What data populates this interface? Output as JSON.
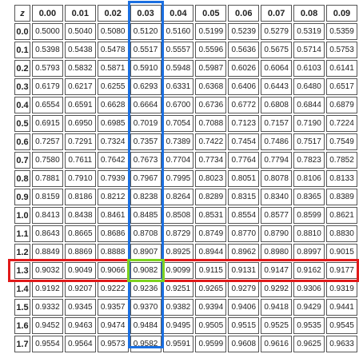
{
  "table": {
    "z_label": "z",
    "columns": [
      "0.00",
      "0.01",
      "0.02",
      "0.03",
      "0.04",
      "0.05",
      "0.06",
      "0.07",
      "0.08",
      "0.09"
    ],
    "rows": [
      {
        "z": "0.0",
        "values": [
          "0.5000",
          "0.5040",
          "0.5080",
          "0.5120",
          "0.5160",
          "0.5199",
          "0.5239",
          "0.5279",
          "0.5319",
          "0.5359"
        ]
      },
      {
        "z": "0.1",
        "values": [
          "0.5398",
          "0.5438",
          "0.5478",
          "0.5517",
          "0.5557",
          "0.5596",
          "0.5636",
          "0.5675",
          "0.5714",
          "0.5753"
        ]
      },
      {
        "z": "0.2",
        "values": [
          "0.5793",
          "0.5832",
          "0.5871",
          "0.5910",
          "0.5948",
          "0.5987",
          "0.6026",
          "0.6064",
          "0.6103",
          "0.6141"
        ]
      },
      {
        "z": "0.3",
        "values": [
          "0.6179",
          "0.6217",
          "0.6255",
          "0.6293",
          "0.6331",
          "0.6368",
          "0.6406",
          "0.6443",
          "0.6480",
          "0.6517"
        ]
      },
      {
        "z": "0.4",
        "values": [
          "0.6554",
          "0.6591",
          "0.6628",
          "0.6664",
          "0.6700",
          "0.6736",
          "0.6772",
          "0.6808",
          "0.6844",
          "0.6879"
        ]
      },
      {
        "z": "0.5",
        "values": [
          "0.6915",
          "0.6950",
          "0.6985",
          "0.7019",
          "0.7054",
          "0.7088",
          "0.7123",
          "0.7157",
          "0.7190",
          "0.7224"
        ]
      },
      {
        "z": "0.6",
        "values": [
          "0.7257",
          "0.7291",
          "0.7324",
          "0.7357",
          "0.7389",
          "0.7422",
          "0.7454",
          "0.7486",
          "0.7517",
          "0.7549"
        ]
      },
      {
        "z": "0.7",
        "values": [
          "0.7580",
          "0.7611",
          "0.7642",
          "0.7673",
          "0.7704",
          "0.7734",
          "0.7764",
          "0.7794",
          "0.7823",
          "0.7852"
        ]
      },
      {
        "z": "0.8",
        "values": [
          "0.7881",
          "0.7910",
          "0.7939",
          "0.7967",
          "0.7995",
          "0.8023",
          "0.8051",
          "0.8078",
          "0.8106",
          "0.8133"
        ]
      },
      {
        "z": "0.9",
        "values": [
          "0.8159",
          "0.8186",
          "0.8212",
          "0.8238",
          "0.8264",
          "0.8289",
          "0.8315",
          "0.8340",
          "0.8365",
          "0.8389"
        ]
      },
      {
        "z": "1.0",
        "values": [
          "0.8413",
          "0.8438",
          "0.8461",
          "0.8485",
          "0.8508",
          "0.8531",
          "0.8554",
          "0.8577",
          "0.8599",
          "0.8621"
        ]
      },
      {
        "z": "1.1",
        "values": [
          "0.8643",
          "0.8665",
          "0.8686",
          "0.8708",
          "0.8729",
          "0.8749",
          "0.8770",
          "0.8790",
          "0.8810",
          "0.8830"
        ]
      },
      {
        "z": "1.2",
        "values": [
          "0.8849",
          "0.8869",
          "0.8888",
          "0.8907",
          "0.8925",
          "0.8944",
          "0.8962",
          "0.8980",
          "0.8997",
          "0.9015"
        ]
      },
      {
        "z": "1.3",
        "values": [
          "0.9032",
          "0.9049",
          "0.9066",
          "0.9082",
          "0.9099",
          "0.9115",
          "0.9131",
          "0.9147",
          "0.9162",
          "0.9177"
        ]
      },
      {
        "z": "1.4",
        "values": [
          "0.9192",
          "0.9207",
          "0.9222",
          "0.9236",
          "0.9251",
          "0.9265",
          "0.9279",
          "0.9292",
          "0.9306",
          "0.9319"
        ]
      },
      {
        "z": "1.5",
        "values": [
          "0.9332",
          "0.9345",
          "0.9357",
          "0.9370",
          "0.9382",
          "0.9394",
          "0.9406",
          "0.9418",
          "0.9429",
          "0.9441"
        ]
      },
      {
        "z": "1.6",
        "values": [
          "0.9452",
          "0.9463",
          "0.9474",
          "0.9484",
          "0.9495",
          "0.9505",
          "0.9515",
          "0.9525",
          "0.9535",
          "0.9545"
        ]
      },
      {
        "z": "1.7",
        "values": [
          "0.9554",
          "0.9564",
          "0.9573",
          "0.9582",
          "0.9591",
          "0.9599",
          "0.9608",
          "0.9616",
          "0.9625",
          "0.9633"
        ]
      }
    ]
  },
  "highlights": {
    "row_z": "1.3",
    "row_color": "#e11a1a",
    "column": "0.03",
    "column_color": "#1a6fe1",
    "cell_value": "0.9082",
    "cell_color": "#7fd11f"
  }
}
